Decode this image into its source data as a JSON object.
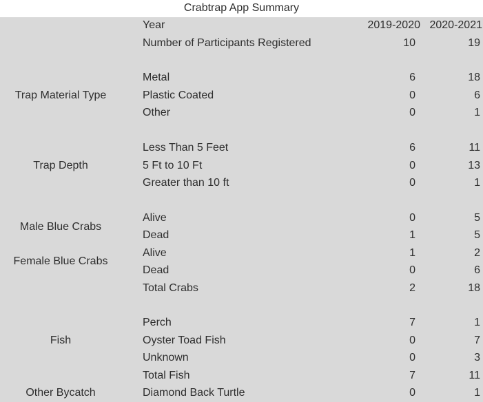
{
  "title": "Crabtrap App Summary",
  "colors": {
    "band_gray": "#d9d9d9",
    "data_area_white": "#ffffff",
    "text": "#2e2e2e"
  },
  "table": {
    "rows": [
      {
        "item": "Year",
        "values": [
          "2019-2020",
          "2020-2021"
        ],
        "is_year_header": true
      },
      {
        "item": "Number of Participants Registered",
        "values": [
          "10",
          "19"
        ]
      },
      {
        "blank": true
      },
      {
        "item": "Metal",
        "values": [
          "6",
          "18"
        ]
      },
      {
        "item": "Plastic Coated",
        "values": [
          "0",
          "6"
        ]
      },
      {
        "item": "Other",
        "values": [
          "0",
          "1"
        ]
      },
      {
        "blank": true
      },
      {
        "item": "Less Than 5 Feet",
        "values": [
          "6",
          "11"
        ]
      },
      {
        "item": "5 Ft to 10 Ft",
        "values": [
          "0",
          "13"
        ]
      },
      {
        "item": "Greater than 10 ft",
        "values": [
          "0",
          "1"
        ]
      },
      {
        "blank": true
      },
      {
        "item": "Alive",
        "values": [
          "0",
          "5"
        ]
      },
      {
        "item": "Dead",
        "values": [
          "1",
          "5"
        ]
      },
      {
        "item": "Alive",
        "values": [
          "1",
          "2"
        ]
      },
      {
        "item": "Dead",
        "values": [
          "0",
          "6"
        ]
      },
      {
        "item": "Total Crabs",
        "values": [
          "2",
          "18"
        ]
      },
      {
        "blank": true
      },
      {
        "item": "Perch",
        "values": [
          "7",
          "1"
        ]
      },
      {
        "item": "Oyster Toad Fish",
        "values": [
          "0",
          "7"
        ]
      },
      {
        "item": "Unknown",
        "values": [
          "0",
          "3"
        ]
      },
      {
        "item": "Total Fish",
        "values": [
          "7",
          "11"
        ]
      },
      {
        "item": "Diamond Back Turtle",
        "values": [
          "0",
          "1"
        ]
      }
    ],
    "side_labels": [
      {
        "label": "Trap Material Type",
        "row_index": 4,
        "span": 1
      },
      {
        "label": "Trap Depth",
        "row_index": 8,
        "span": 1
      },
      {
        "label": "Male Blue Crabs",
        "row_index": 11,
        "span": 2
      },
      {
        "label": "Female Blue Crabs",
        "row_index": 13,
        "span": 2
      },
      {
        "label": "Fish",
        "row_index": 18,
        "span": 1
      },
      {
        "label": "Other Bycatch",
        "row_index": 21,
        "span": 1
      }
    ]
  }
}
